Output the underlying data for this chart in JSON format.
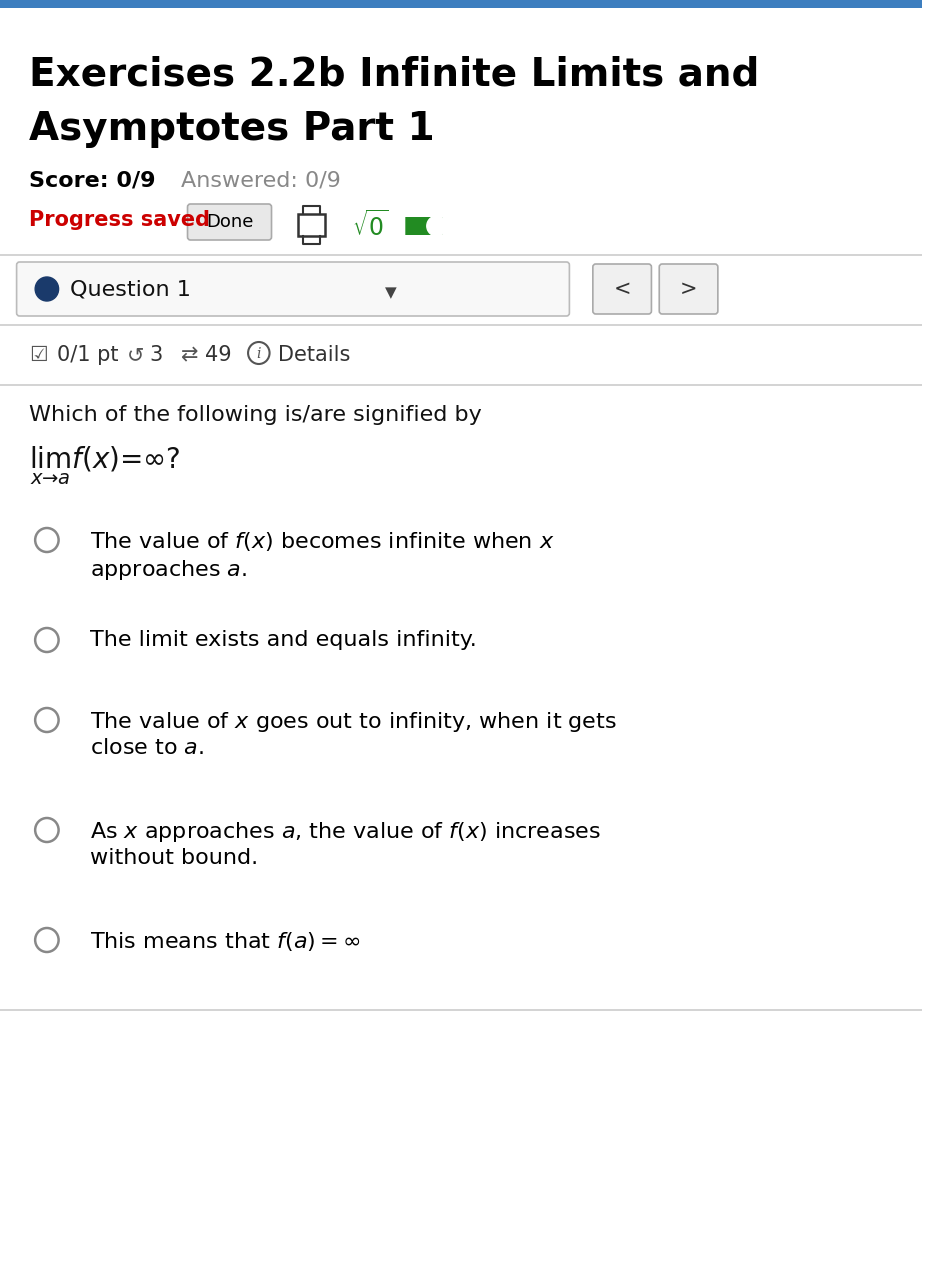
{
  "title_line1": "Exercises 2.2b Infinite Limits and",
  "title_line2": "Asymptotes Part 1",
  "score_text": "Score: 0/9",
  "answered_text": "Answered: 0/9",
  "progress_label": "Progress saved",
  "done_button": "Done",
  "question_label": "Question 1",
  "points_text": "0/1 pt",
  "retries": "3",
  "attempts": "49",
  "details_text": "Details",
  "question_intro": "Which of the following is/are signified by",
  "limit_expression": "$\\lim_{x \\to a} f(x) = \\infty$?",
  "options": [
    "The value of $f(x)$ becomes infinite when $x$\napproaches $a$.",
    "The limit exists and equals infinity.",
    "The value of $x$ goes out to infinity, when it gets\nclose to $a$.",
    "As $x$ approaches $a$, the value of $f(x)$ increases\nwithout bound.",
    "This means that $f(a) = \\infty$"
  ],
  "bg_color": "#ffffff",
  "top_bar_color": "#3d7ebf",
  "title_color": "#000000",
  "score_color": "#000000",
  "answered_color": "#888888",
  "progress_color": "#cc0000",
  "question_text_color": "#000000",
  "option_text_color": "#000000",
  "separator_color": "#cccccc",
  "checkbox_color": "#888888",
  "button_bg": "#e8e8e8",
  "button_border": "#aaaaaa",
  "blue_dot_color": "#1a3a6b",
  "nav_button_bg": "#f0f0f0",
  "sqrt_color": "#228B22",
  "toggle_color": "#228B22"
}
